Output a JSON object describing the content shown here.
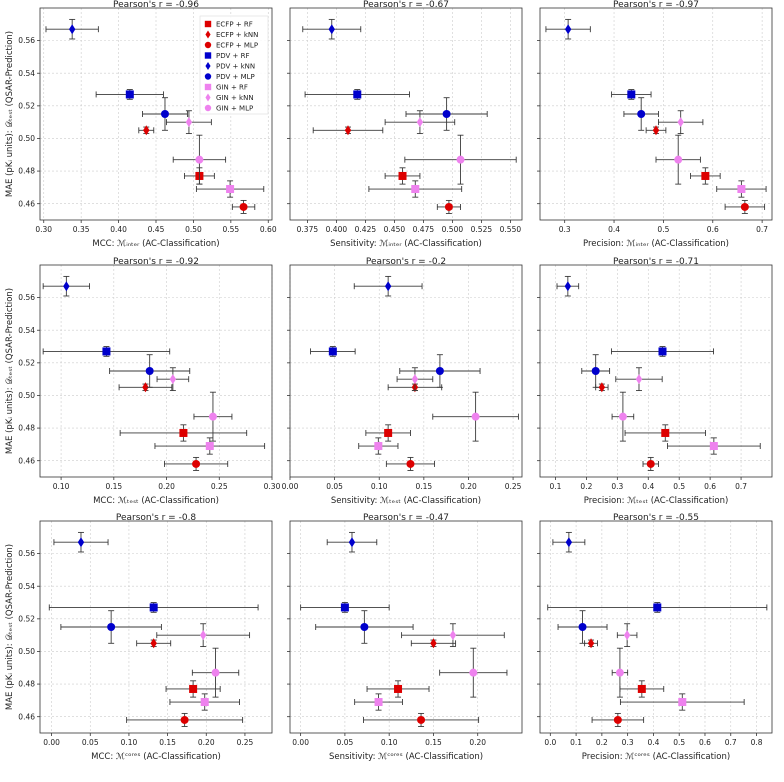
{
  "figure": {
    "ylabel": "MAE (pKᵢ units): 𝒟ₜₑₛₜ (QSAR-Prediction)",
    "ylim": [
      0.45,
      0.58
    ],
    "yticks": [
      0.46,
      0.48,
      0.5,
      0.52,
      0.54,
      0.56
    ],
    "ytick_labels": [
      "0.46",
      "0.48",
      "0.50",
      "0.52",
      "0.54",
      "0.56"
    ]
  },
  "legend": {
    "location": "upper-left inside top-left panel",
    "entries": [
      {
        "label": "ECFP + RF",
        "color": "#dd0000",
        "marker": "square"
      },
      {
        "label": "ECFP + kNN",
        "color": "#dd0000",
        "marker": "diamond"
      },
      {
        "label": "ECFP + MLP",
        "color": "#dd0000",
        "marker": "circle"
      },
      {
        "label": "PDV + RF",
        "color": "#0000cc",
        "marker": "square"
      },
      {
        "label": "PDV + kNN",
        "color": "#0000cc",
        "marker": "diamond"
      },
      {
        "label": "PDV + MLP",
        "color": "#0000cc",
        "marker": "circle"
      },
      {
        "label": "GIN + RF",
        "color": "#ee82ee",
        "marker": "square"
      },
      {
        "label": "GIN + kNN",
        "color": "#ee82ee",
        "marker": "diamond"
      },
      {
        "label": "GIN + MLP",
        "color": "#ee82ee",
        "marker": "circle"
      }
    ]
  },
  "chart_data": [
    {
      "type": "scatter",
      "title": "Pearson's r = -0.96",
      "xlabel": "MCC: ℳᵢₙₜₑᵣ (AC-Classification)",
      "xlim": [
        0.295,
        0.605
      ],
      "xticks": [
        0.3,
        0.35,
        0.4,
        0.45,
        0.5,
        0.55,
        0.6
      ],
      "xtick_labels": [
        "0.30",
        "0.35",
        "0.40",
        "0.45",
        "0.50",
        "0.55",
        "0.60"
      ],
      "points": [
        {
          "model": "ECFP + RF",
          "x": 0.508,
          "xerr": 0.02,
          "y": 0.477,
          "yerr": 0.005
        },
        {
          "model": "ECFP + kNN",
          "x": 0.437,
          "xerr": 0.01,
          "y": 0.505,
          "yerr": 0.002
        },
        {
          "model": "ECFP + MLP",
          "x": 0.567,
          "xerr": 0.015,
          "y": 0.458,
          "yerr": 0.004
        },
        {
          "model": "PDV + RF",
          "x": 0.415,
          "xerr": 0.045,
          "y": 0.527,
          "yerr": 0.003
        },
        {
          "model": "PDV + kNN",
          "x": 0.338,
          "xerr": 0.035,
          "y": 0.567,
          "yerr": 0.006
        },
        {
          "model": "PDV + MLP",
          "x": 0.462,
          "xerr": 0.03,
          "y": 0.515,
          "yerr": 0.01
        },
        {
          "model": "GIN + RF",
          "x": 0.549,
          "xerr": 0.045,
          "y": 0.469,
          "yerr": 0.005
        },
        {
          "model": "GIN + kNN",
          "x": 0.494,
          "xerr": 0.03,
          "y": 0.51,
          "yerr": 0.007
        },
        {
          "model": "GIN + MLP",
          "x": 0.508,
          "xerr": 0.035,
          "y": 0.487,
          "yerr": 0.015
        }
      ]
    },
    {
      "type": "scatter",
      "title": "Pearson's r = -0.67",
      "xlabel": "Sensitivity: ℳᵢₙₜₑᵣ (AC-Classification)",
      "xlim": [
        0.36,
        0.56
      ],
      "xticks": [
        0.375,
        0.4,
        0.425,
        0.45,
        0.475,
        0.5,
        0.525,
        0.55
      ],
      "xtick_labels": [
        "0.375",
        "0.400",
        "0.425",
        "0.450",
        "0.475",
        "0.500",
        "0.525",
        "0.550"
      ],
      "points": [
        {
          "model": "ECFP + RF",
          "x": 0.457,
          "xerr": 0.015,
          "y": 0.477,
          "yerr": 0.005
        },
        {
          "model": "ECFP + kNN",
          "x": 0.41,
          "xerr": 0.03,
          "y": 0.505,
          "yerr": 0.002
        },
        {
          "model": "ECFP + MLP",
          "x": 0.497,
          "xerr": 0.01,
          "y": 0.458,
          "yerr": 0.004
        },
        {
          "model": "PDV + RF",
          "x": 0.418,
          "xerr": 0.045,
          "y": 0.527,
          "yerr": 0.003
        },
        {
          "model": "PDV + kNN",
          "x": 0.396,
          "xerr": 0.025,
          "y": 0.567,
          "yerr": 0.006
        },
        {
          "model": "PDV + MLP",
          "x": 0.495,
          "xerr": 0.035,
          "y": 0.515,
          "yerr": 0.01
        },
        {
          "model": "GIN + RF",
          "x": 0.468,
          "xerr": 0.04,
          "y": 0.469,
          "yerr": 0.005
        },
        {
          "model": "GIN + kNN",
          "x": 0.472,
          "xerr": 0.03,
          "y": 0.51,
          "yerr": 0.007
        },
        {
          "model": "GIN + MLP",
          "x": 0.507,
          "xerr": 0.048,
          "y": 0.487,
          "yerr": 0.015
        }
      ]
    },
    {
      "type": "scatter",
      "title": "Pearson's r = -0.97",
      "xlabel": "Precision: ℳᵢₙₜₑᵣ (AC-Classification)",
      "xlim": [
        0.25,
        0.72
      ],
      "xticks": [
        0.3,
        0.4,
        0.5,
        0.6,
        0.7
      ],
      "xtick_labels": [
        "0.3",
        "0.4",
        "0.5",
        "0.6",
        "0.7"
      ],
      "points": [
        {
          "model": "ECFP + RF",
          "x": 0.585,
          "xerr": 0.03,
          "y": 0.477,
          "yerr": 0.005
        },
        {
          "model": "ECFP + kNN",
          "x": 0.485,
          "xerr": 0.02,
          "y": 0.505,
          "yerr": 0.002
        },
        {
          "model": "ECFP + MLP",
          "x": 0.665,
          "xerr": 0.04,
          "y": 0.458,
          "yerr": 0.004
        },
        {
          "model": "PDV + RF",
          "x": 0.435,
          "xerr": 0.04,
          "y": 0.527,
          "yerr": 0.003
        },
        {
          "model": "PDV + kNN",
          "x": 0.307,
          "xerr": 0.045,
          "y": 0.567,
          "yerr": 0.006
        },
        {
          "model": "PDV + MLP",
          "x": 0.455,
          "xerr": 0.035,
          "y": 0.515,
          "yerr": 0.01
        },
        {
          "model": "GIN + RF",
          "x": 0.658,
          "xerr": 0.05,
          "y": 0.469,
          "yerr": 0.005
        },
        {
          "model": "GIN + kNN",
          "x": 0.535,
          "xerr": 0.045,
          "y": 0.51,
          "yerr": 0.007
        },
        {
          "model": "GIN + MLP",
          "x": 0.53,
          "xerr": 0.045,
          "y": 0.487,
          "yerr": 0.015
        }
      ]
    },
    {
      "type": "scatter",
      "title": "Pearson's r = -0.92",
      "xlabel": "MCC: ℳₜₑₛₜ (AC-Classification)",
      "xlim": [
        0.08,
        0.3
      ],
      "xticks": [
        0.1,
        0.15,
        0.2,
        0.25,
        0.3
      ],
      "xtick_labels": [
        "0.10",
        "0.15",
        "0.20",
        "0.25",
        "0.30"
      ],
      "points": [
        {
          "model": "ECFP + RF",
          "x": 0.216,
          "xerr": 0.06,
          "y": 0.477,
          "yerr": 0.005
        },
        {
          "model": "ECFP + kNN",
          "x": 0.18,
          "xerr": 0.025,
          "y": 0.505,
          "yerr": 0.002
        },
        {
          "model": "ECFP + MLP",
          "x": 0.228,
          "xerr": 0.03,
          "y": 0.458,
          "yerr": 0.004
        },
        {
          "model": "PDV + RF",
          "x": 0.143,
          "xerr": 0.06,
          "y": 0.527,
          "yerr": 0.003
        },
        {
          "model": "PDV + kNN",
          "x": 0.105,
          "xerr": 0.022,
          "y": 0.567,
          "yerr": 0.006
        },
        {
          "model": "PDV + MLP",
          "x": 0.184,
          "xerr": 0.038,
          "y": 0.515,
          "yerr": 0.01
        },
        {
          "model": "GIN + RF",
          "x": 0.241,
          "xerr": 0.052,
          "y": 0.469,
          "yerr": 0.005
        },
        {
          "model": "GIN + kNN",
          "x": 0.206,
          "xerr": 0.015,
          "y": 0.51,
          "yerr": 0.007
        },
        {
          "model": "GIN + MLP",
          "x": 0.244,
          "xerr": 0.018,
          "y": 0.487,
          "yerr": 0.015
        }
      ]
    },
    {
      "type": "scatter",
      "title": "Pearson's r = -0.2",
      "xlabel": "Sensitivity: ℳₜₑₛₜ (AC-Classification)",
      "xlim": [
        0.0,
        0.26
      ],
      "xticks": [
        0.0,
        0.05,
        0.1,
        0.15,
        0.2,
        0.25
      ],
      "xtick_labels": [
        "0.00",
        "0.05",
        "0.10",
        "0.15",
        "0.20",
        "0.25"
      ],
      "points": [
        {
          "model": "ECFP + RF",
          "x": 0.11,
          "xerr": 0.025,
          "y": 0.477,
          "yerr": 0.005
        },
        {
          "model": "ECFP + kNN",
          "x": 0.14,
          "xerr": 0.03,
          "y": 0.505,
          "yerr": 0.002
        },
        {
          "model": "ECFP + MLP",
          "x": 0.135,
          "xerr": 0.027,
          "y": 0.458,
          "yerr": 0.004
        },
        {
          "model": "PDV + RF",
          "x": 0.048,
          "xerr": 0.025,
          "y": 0.527,
          "yerr": 0.003
        },
        {
          "model": "PDV + kNN",
          "x": 0.11,
          "xerr": 0.038,
          "y": 0.567,
          "yerr": 0.006
        },
        {
          "model": "PDV + MLP",
          "x": 0.168,
          "xerr": 0.045,
          "y": 0.515,
          "yerr": 0.01
        },
        {
          "model": "GIN + RF",
          "x": 0.099,
          "xerr": 0.022,
          "y": 0.469,
          "yerr": 0.005
        },
        {
          "model": "GIN + kNN",
          "x": 0.14,
          "xerr": 0.02,
          "y": 0.51,
          "yerr": 0.007
        },
        {
          "model": "GIN + MLP",
          "x": 0.208,
          "xerr": 0.048,
          "y": 0.487,
          "yerr": 0.015
        }
      ]
    },
    {
      "type": "scatter",
      "title": "Pearson's r = -0.71",
      "xlabel": "Precision: ℳₜₑₛₜ (AC-Classification)",
      "xlim": [
        0.05,
        0.8
      ],
      "xticks": [
        0.1,
        0.2,
        0.3,
        0.4,
        0.5,
        0.6,
        0.7
      ],
      "xtick_labels": [
        "0.1",
        "0.2",
        "0.3",
        "0.4",
        "0.5",
        "0.6",
        "0.7"
      ],
      "points": [
        {
          "model": "ECFP + RF",
          "x": 0.455,
          "xerr": 0.13,
          "y": 0.477,
          "yerr": 0.005
        },
        {
          "model": "ECFP + kNN",
          "x": 0.25,
          "xerr": 0.02,
          "y": 0.505,
          "yerr": 0.002
        },
        {
          "model": "ECFP + MLP",
          "x": 0.408,
          "xerr": 0.025,
          "y": 0.458,
          "yerr": 0.004
        },
        {
          "model": "PDV + RF",
          "x": 0.446,
          "xerr": 0.165,
          "y": 0.527,
          "yerr": 0.003
        },
        {
          "model": "PDV + kNN",
          "x": 0.14,
          "xerr": 0.035,
          "y": 0.567,
          "yerr": 0.006
        },
        {
          "model": "PDV + MLP",
          "x": 0.23,
          "xerr": 0.045,
          "y": 0.515,
          "yerr": 0.01
        },
        {
          "model": "GIN + RF",
          "x": 0.612,
          "xerr": 0.15,
          "y": 0.469,
          "yerr": 0.005
        },
        {
          "model": "GIN + kNN",
          "x": 0.37,
          "xerr": 0.075,
          "y": 0.51,
          "yerr": 0.007
        },
        {
          "model": "GIN + MLP",
          "x": 0.318,
          "xerr": 0.035,
          "y": 0.487,
          "yerr": 0.015
        }
      ]
    },
    {
      "type": "scatter",
      "title": "Pearson's r = -0.8",
      "xlabel": "MCC: ℳᶜᵒʳᵉˢ (AC-Classification)",
      "xlim": [
        -0.015,
        0.285
      ],
      "xticks": [
        0.0,
        0.05,
        0.1,
        0.15,
        0.2,
        0.25
      ],
      "xtick_labels": [
        "0.00",
        "0.05",
        "0.10",
        "0.15",
        "0.20",
        "0.25"
      ],
      "points": [
        {
          "model": "ECFP + RF",
          "x": 0.183,
          "xerr": 0.035,
          "y": 0.477,
          "yerr": 0.005
        },
        {
          "model": "ECFP + kNN",
          "x": 0.132,
          "xerr": 0.022,
          "y": 0.505,
          "yerr": 0.002
        },
        {
          "model": "ECFP + MLP",
          "x": 0.172,
          "xerr": 0.075,
          "y": 0.458,
          "yerr": 0.004
        },
        {
          "model": "PDV + RF",
          "x": 0.132,
          "xerr": 0.135,
          "y": 0.527,
          "yerr": 0.003
        },
        {
          "model": "PDV + kNN",
          "x": 0.038,
          "xerr": 0.035,
          "y": 0.567,
          "yerr": 0.006
        },
        {
          "model": "PDV + MLP",
          "x": 0.077,
          "xerr": 0.065,
          "y": 0.515,
          "yerr": 0.01
        },
        {
          "model": "GIN + RF",
          "x": 0.198,
          "xerr": 0.045,
          "y": 0.469,
          "yerr": 0.005
        },
        {
          "model": "GIN + kNN",
          "x": 0.196,
          "xerr": 0.06,
          "y": 0.51,
          "yerr": 0.007
        },
        {
          "model": "GIN + MLP",
          "x": 0.212,
          "xerr": 0.03,
          "y": 0.487,
          "yerr": 0.015
        }
      ]
    },
    {
      "type": "scatter",
      "title": "Pearson's r = -0.47",
      "xlabel": "Sensitivity: ℳᶜᵒʳᵉˢ (AC-Classification)",
      "xlim": [
        -0.012,
        0.25
      ],
      "xticks": [
        0.0,
        0.05,
        0.1,
        0.15,
        0.2
      ],
      "xtick_labels": [
        "0.00",
        "0.05",
        "0.10",
        "0.15",
        "0.20"
      ],
      "points": [
        {
          "model": "ECFP + RF",
          "x": 0.11,
          "xerr": 0.035,
          "y": 0.477,
          "yerr": 0.005
        },
        {
          "model": "ECFP + kNN",
          "x": 0.15,
          "xerr": 0.025,
          "y": 0.505,
          "yerr": 0.002
        },
        {
          "model": "ECFP + MLP",
          "x": 0.136,
          "xerr": 0.065,
          "y": 0.458,
          "yerr": 0.004
        },
        {
          "model": "PDV + RF",
          "x": 0.05,
          "xerr": 0.05,
          "y": 0.527,
          "yerr": 0.003
        },
        {
          "model": "PDV + kNN",
          "x": 0.058,
          "xerr": 0.028,
          "y": 0.567,
          "yerr": 0.006
        },
        {
          "model": "PDV + MLP",
          "x": 0.072,
          "xerr": 0.055,
          "y": 0.515,
          "yerr": 0.01
        },
        {
          "model": "GIN + RF",
          "x": 0.088,
          "xerr": 0.027,
          "y": 0.469,
          "yerr": 0.005
        },
        {
          "model": "GIN + kNN",
          "x": 0.172,
          "xerr": 0.058,
          "y": 0.51,
          "yerr": 0.007
        },
        {
          "model": "GIN + MLP",
          "x": 0.195,
          "xerr": 0.038,
          "y": 0.487,
          "yerr": 0.015
        }
      ]
    },
    {
      "type": "scatter",
      "title": "Pearson's r = -0.55",
      "xlabel": "Precision: ℳᶜᵒʳᵉˢ (AC-Classification)",
      "xlim": [
        -0.04,
        0.86
      ],
      "xticks": [
        0.0,
        0.1,
        0.2,
        0.3,
        0.4,
        0.5,
        0.6,
        0.7,
        0.8
      ],
      "xtick_labels": [
        "0.0",
        "0.1",
        "0.2",
        "0.3",
        "0.4",
        "0.5",
        "0.6",
        "0.7",
        "0.8"
      ],
      "points": [
        {
          "model": "ECFP + RF",
          "x": 0.355,
          "xerr": 0.085,
          "y": 0.477,
          "yerr": 0.005
        },
        {
          "model": "ECFP + kNN",
          "x": 0.158,
          "xerr": 0.025,
          "y": 0.505,
          "yerr": 0.002
        },
        {
          "model": "ECFP + MLP",
          "x": 0.262,
          "xerr": 0.1,
          "y": 0.458,
          "yerr": 0.004
        },
        {
          "model": "PDV + RF",
          "x": 0.415,
          "xerr": 0.425,
          "y": 0.527,
          "yerr": 0.003
        },
        {
          "model": "PDV + kNN",
          "x": 0.072,
          "xerr": 0.062,
          "y": 0.567,
          "yerr": 0.006
        },
        {
          "model": "PDV + MLP",
          "x": 0.125,
          "xerr": 0.095,
          "y": 0.515,
          "yerr": 0.01
        },
        {
          "model": "GIN + RF",
          "x": 0.512,
          "xerr": 0.24,
          "y": 0.469,
          "yerr": 0.005
        },
        {
          "model": "GIN + kNN",
          "x": 0.298,
          "xerr": 0.038,
          "y": 0.51,
          "yerr": 0.007
        },
        {
          "model": "GIN + MLP",
          "x": 0.27,
          "xerr": 0.03,
          "y": 0.487,
          "yerr": 0.015
        }
      ]
    }
  ]
}
